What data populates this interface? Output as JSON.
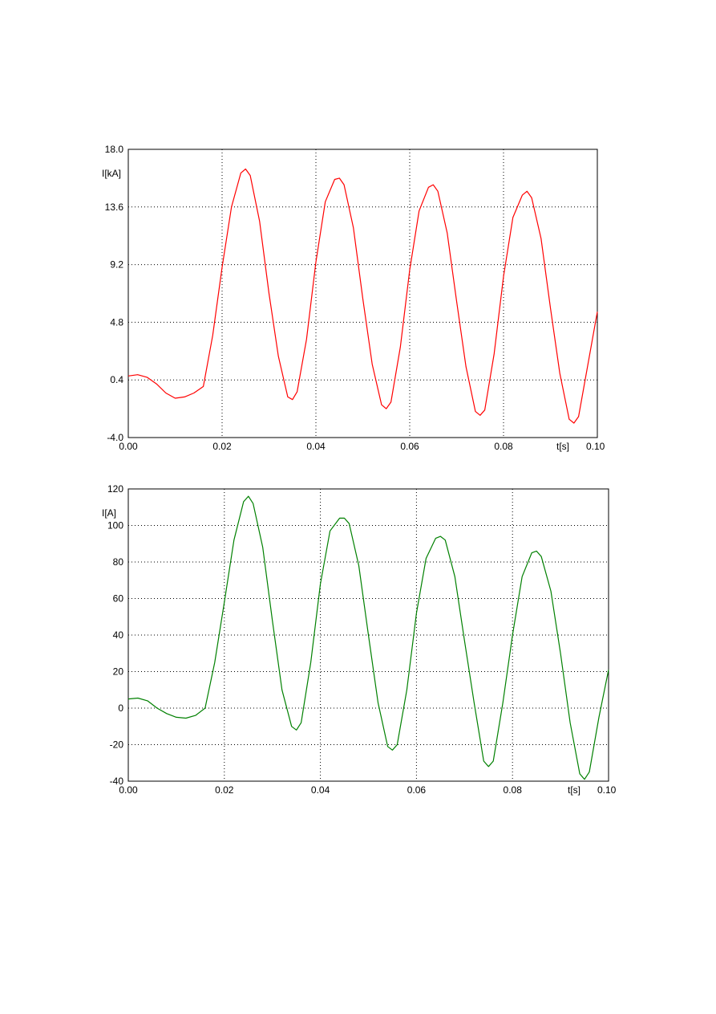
{
  "chart_data": [
    {
      "type": "line",
      "title": "",
      "xlabel": "t[s]",
      "ylabel": "I[kA]",
      "xlim": [
        0.0,
        0.1
      ],
      "ylim": [
        -4.0,
        18.0
      ],
      "x_ticks": [
        0.0,
        0.02,
        0.04,
        0.06,
        0.08,
        0.1
      ],
      "x_tick_labels": [
        "0.00",
        "0.02",
        "0.04",
        "0.06",
        "0.08",
        "0.10"
      ],
      "y_ticks": [
        -4.0,
        0.4,
        4.8,
        9.2,
        13.6,
        18.0
      ],
      "y_tick_labels": [
        "-4.0",
        "0.4",
        "4.8",
        "9.2",
        "13.6",
        "18.0"
      ],
      "grid": true,
      "color": "#ff0000",
      "series": [
        {
          "x": [
            0.0,
            0.002,
            0.004,
            0.006,
            0.008,
            0.01,
            0.012,
            0.014,
            0.016,
            0.018,
            0.02,
            0.022,
            0.024,
            0.025,
            0.026,
            0.028,
            0.03,
            0.032,
            0.034,
            0.035,
            0.036,
            0.038,
            0.04,
            0.042,
            0.044,
            0.045,
            0.046,
            0.048,
            0.05,
            0.052,
            0.054,
            0.055,
            0.056,
            0.058,
            0.06,
            0.062,
            0.064,
            0.065,
            0.066,
            0.068,
            0.07,
            0.072,
            0.074,
            0.075,
            0.076,
            0.078,
            0.08,
            0.082,
            0.084,
            0.085,
            0.086,
            0.088,
            0.09,
            0.092,
            0.094,
            0.095,
            0.096,
            0.098,
            0.1
          ],
          "y": [
            0.7,
            0.8,
            0.6,
            0.1,
            -0.6,
            -1.0,
            -0.9,
            -0.6,
            -0.1,
            3.8,
            9.0,
            13.6,
            16.2,
            16.5,
            16.0,
            12.5,
            7.0,
            2.2,
            -0.9,
            -1.1,
            -0.5,
            3.5,
            9.4,
            14.0,
            15.7,
            15.8,
            15.3,
            12.0,
            6.6,
            1.6,
            -1.5,
            -1.8,
            -1.3,
            2.9,
            8.8,
            13.3,
            15.1,
            15.3,
            14.8,
            11.6,
            6.4,
            1.4,
            -2.0,
            -2.3,
            -1.9,
            2.4,
            8.3,
            12.8,
            14.5,
            14.8,
            14.3,
            11.2,
            5.9,
            0.9,
            -2.6,
            -2.9,
            -2.4,
            1.6,
            5.6
          ]
        }
      ]
    },
    {
      "type": "line",
      "title": "",
      "xlabel": "t[s]",
      "ylabel": "I[A]",
      "xlim": [
        0.0,
        0.1
      ],
      "ylim": [
        -40,
        120
      ],
      "x_ticks": [
        0.0,
        0.02,
        0.04,
        0.06,
        0.08,
        0.1
      ],
      "x_tick_labels": [
        "0.00",
        "0.02",
        "0.04",
        "0.06",
        "0.08",
        "0.10"
      ],
      "y_ticks": [
        -40,
        -20,
        0,
        20,
        40,
        60,
        80,
        100,
        120
      ],
      "y_tick_labels": [
        "-40",
        "-20",
        "0",
        "20",
        "40",
        "60",
        "80",
        "100",
        "120"
      ],
      "grid": true,
      "color": "#008000",
      "series": [
        {
          "x": [
            0.0,
            0.002,
            0.004,
            0.006,
            0.008,
            0.01,
            0.012,
            0.014,
            0.016,
            0.018,
            0.02,
            0.022,
            0.024,
            0.025,
            0.026,
            0.028,
            0.03,
            0.032,
            0.034,
            0.035,
            0.036,
            0.038,
            0.04,
            0.042,
            0.044,
            0.045,
            0.046,
            0.048,
            0.05,
            0.052,
            0.054,
            0.055,
            0.056,
            0.058,
            0.06,
            0.062,
            0.064,
            0.065,
            0.066,
            0.068,
            0.07,
            0.072,
            0.074,
            0.075,
            0.076,
            0.078,
            0.08,
            0.082,
            0.084,
            0.085,
            0.086,
            0.088,
            0.09,
            0.092,
            0.094,
            0.095,
            0.096,
            0.098,
            0.1
          ],
          "y": [
            5,
            5.5,
            4,
            0,
            -3,
            -5,
            -5.5,
            -4,
            0,
            25,
            58,
            92,
            113,
            116,
            112,
            88,
            48,
            10,
            -10,
            -12,
            -8,
            25,
            68,
            97,
            104,
            104,
            101,
            78,
            40,
            3,
            -21,
            -23,
            -20,
            10,
            52,
            82,
            93,
            94,
            92,
            72,
            37,
            3,
            -29,
            -32,
            -29,
            3,
            40,
            72,
            85,
            86,
            83,
            64,
            30,
            -8,
            -36,
            -39,
            -35,
            -5,
            21
          ]
        }
      ]
    }
  ]
}
